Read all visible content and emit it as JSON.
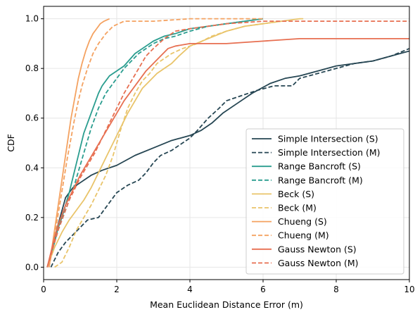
{
  "chart_data": {
    "type": "line",
    "xlabel": "Mean Euclidean Distance Error (m)",
    "ylabel": "CDF",
    "xlim": [
      0,
      10
    ],
    "ylim": [
      -0.05,
      1.05
    ],
    "xticks": [
      0,
      2,
      4,
      6,
      8,
      10
    ],
    "yticks": [
      0.0,
      0.2,
      0.4,
      0.6,
      0.8,
      1.0
    ],
    "grid": true,
    "legend_position": "lower-right",
    "series": [
      {
        "name": "Simple Intersection (S)",
        "color": "#264653",
        "dash": "solid",
        "x": [
          0.1,
          0.2,
          0.3,
          0.45,
          0.6,
          0.8,
          1.0,
          1.3,
          1.6,
          2.0,
          2.5,
          3.0,
          3.5,
          4.0,
          4.3,
          4.6,
          4.9,
          5.3,
          5.7,
          6.2,
          6.6,
          7.0,
          7.5,
          8.0,
          8.5,
          9.0,
          9.5,
          10.0
        ],
        "y": [
          0.0,
          0.05,
          0.12,
          0.2,
          0.28,
          0.32,
          0.34,
          0.37,
          0.39,
          0.41,
          0.45,
          0.48,
          0.51,
          0.53,
          0.55,
          0.58,
          0.62,
          0.66,
          0.7,
          0.74,
          0.76,
          0.77,
          0.79,
          0.81,
          0.82,
          0.83,
          0.85,
          0.87
        ]
      },
      {
        "name": "Simple Intersection (M)",
        "color": "#264653",
        "dash": "dashed",
        "x": [
          0.2,
          0.4,
          0.6,
          0.8,
          1.0,
          1.2,
          1.5,
          1.8,
          2.0,
          2.3,
          2.6,
          2.8,
          3.0,
          3.2,
          3.5,
          3.8,
          4.0,
          4.2,
          4.5,
          4.8,
          5.0,
          5.4,
          5.8,
          6.3,
          6.8,
          7.0,
          7.5,
          8.0,
          8.5,
          9.0,
          9.5,
          10.0
        ],
        "y": [
          0.0,
          0.06,
          0.1,
          0.13,
          0.16,
          0.19,
          0.2,
          0.26,
          0.3,
          0.33,
          0.35,
          0.38,
          0.42,
          0.45,
          0.47,
          0.5,
          0.52,
          0.55,
          0.6,
          0.64,
          0.67,
          0.69,
          0.71,
          0.73,
          0.73,
          0.76,
          0.78,
          0.8,
          0.82,
          0.83,
          0.85,
          0.88
        ]
      },
      {
        "name": "Range Bancroft (S)",
        "color": "#2a9d8f",
        "dash": "solid",
        "x": [
          0.1,
          0.2,
          0.3,
          0.4,
          0.5,
          0.6,
          0.7,
          0.8,
          0.9,
          1.0,
          1.1,
          1.2,
          1.3,
          1.4,
          1.5,
          1.6,
          1.7,
          1.8,
          2.0,
          2.2,
          2.5,
          2.8,
          3.0,
          3.3,
          3.6,
          4.0,
          4.5,
          5.0,
          5.5,
          6.0
        ],
        "y": [
          0.0,
          0.05,
          0.1,
          0.16,
          0.2,
          0.25,
          0.3,
          0.36,
          0.42,
          0.48,
          0.54,
          0.58,
          0.62,
          0.66,
          0.7,
          0.73,
          0.75,
          0.77,
          0.79,
          0.81,
          0.86,
          0.89,
          0.91,
          0.93,
          0.94,
          0.96,
          0.97,
          0.98,
          0.99,
          1.0
        ]
      },
      {
        "name": "Range Bancroft (M)",
        "color": "#2a9d8f",
        "dash": "dashed",
        "x": [
          0.1,
          0.2,
          0.3,
          0.4,
          0.5,
          0.6,
          0.7,
          0.8,
          0.9,
          1.0,
          1.1,
          1.2,
          1.3,
          1.4,
          1.5,
          1.6,
          1.7,
          1.8,
          2.0,
          2.2,
          2.4,
          2.6,
          2.8,
          3.0,
          3.3,
          3.6,
          4.0,
          4.5,
          5.0,
          5.5,
          6.0
        ],
        "y": [
          0.0,
          0.05,
          0.1,
          0.15,
          0.19,
          0.23,
          0.27,
          0.31,
          0.36,
          0.41,
          0.46,
          0.51,
          0.56,
          0.6,
          0.64,
          0.67,
          0.7,
          0.72,
          0.76,
          0.8,
          0.83,
          0.86,
          0.88,
          0.9,
          0.92,
          0.93,
          0.95,
          0.97,
          0.98,
          0.99,
          1.0
        ]
      },
      {
        "name": "Beck (S)",
        "color": "#e9c46a",
        "dash": "solid",
        "x": [
          0.1,
          0.3,
          0.5,
          0.7,
          0.9,
          1.1,
          1.3,
          1.5,
          1.7,
          1.9,
          2.1,
          2.3,
          2.5,
          2.7,
          2.9,
          3.1,
          3.3,
          3.5,
          3.7,
          4.0,
          4.5,
          5.0,
          5.5,
          6.0,
          6.5,
          7.0,
          7.1
        ],
        "y": [
          0.0,
          0.08,
          0.14,
          0.19,
          0.23,
          0.27,
          0.32,
          0.38,
          0.44,
          0.5,
          0.56,
          0.62,
          0.67,
          0.72,
          0.75,
          0.78,
          0.8,
          0.82,
          0.85,
          0.89,
          0.92,
          0.95,
          0.97,
          0.98,
          0.99,
          1.0,
          1.0
        ]
      },
      {
        "name": "Beck (M)",
        "color": "#e9c46a",
        "dash": "dashed",
        "x": [
          0.3,
          0.5,
          0.7,
          0.9,
          1.1,
          1.3,
          1.5,
          1.7,
          1.9,
          2.1,
          2.3,
          2.5,
          2.7,
          2.9,
          3.1,
          3.3,
          3.5,
          3.8,
          4.2,
          4.6,
          5.0,
          5.5,
          6.0,
          6.5
        ],
        "y": [
          0.0,
          0.02,
          0.08,
          0.15,
          0.2,
          0.25,
          0.31,
          0.37,
          0.45,
          0.55,
          0.64,
          0.7,
          0.75,
          0.78,
          0.82,
          0.84,
          0.86,
          0.88,
          0.9,
          0.93,
          0.95,
          0.97,
          0.98,
          0.99
        ]
      },
      {
        "name": "Chueng (S)",
        "color": "#f4a261",
        "dash": "solid",
        "x": [
          0.15,
          0.25,
          0.35,
          0.45,
          0.55,
          0.65,
          0.75,
          0.85,
          0.95,
          1.05,
          1.15,
          1.25,
          1.35,
          1.45,
          1.55,
          1.65,
          1.8
        ],
        "y": [
          0.0,
          0.1,
          0.2,
          0.3,
          0.4,
          0.5,
          0.6,
          0.68,
          0.76,
          0.82,
          0.87,
          0.91,
          0.94,
          0.96,
          0.98,
          0.99,
          1.0
        ]
      },
      {
        "name": "Chueng (M)",
        "color": "#f4a261",
        "dash": "dashed",
        "x": [
          0.15,
          0.25,
          0.35,
          0.45,
          0.55,
          0.65,
          0.75,
          0.85,
          0.95,
          1.05,
          1.2,
          1.35,
          1.5,
          1.7,
          1.9,
          2.2,
          2.6,
          3.0,
          4.0,
          5.0,
          6.0
        ],
        "y": [
          0.0,
          0.08,
          0.17,
          0.26,
          0.35,
          0.44,
          0.52,
          0.6,
          0.67,
          0.73,
          0.8,
          0.86,
          0.9,
          0.94,
          0.97,
          0.99,
          0.99,
          0.99,
          1.0,
          1.0,
          1.0
        ]
      },
      {
        "name": "Gauss Newton (S)",
        "color": "#e76f51",
        "dash": "solid",
        "x": [
          0.1,
          0.2,
          0.3,
          0.4,
          0.5,
          0.6,
          0.7,
          0.8,
          0.9,
          1.0,
          1.2,
          1.4,
          1.6,
          1.8,
          2.0,
          2.2,
          2.4,
          2.6,
          2.8,
          3.0,
          3.2,
          3.4,
          3.6,
          4.0,
          5.0,
          6.0,
          7.0,
          8.0,
          9.0,
          10.0
        ],
        "y": [
          0.0,
          0.06,
          0.12,
          0.17,
          0.21,
          0.25,
          0.28,
          0.31,
          0.34,
          0.37,
          0.42,
          0.47,
          0.52,
          0.57,
          0.62,
          0.67,
          0.71,
          0.75,
          0.79,
          0.82,
          0.85,
          0.88,
          0.89,
          0.9,
          0.9,
          0.91,
          0.92,
          0.92,
          0.92,
          0.92
        ]
      },
      {
        "name": "Gauss Newton (M)",
        "color": "#e76f51",
        "dash": "dashed",
        "x": [
          0.1,
          0.2,
          0.3,
          0.4,
          0.5,
          0.6,
          0.7,
          0.8,
          0.9,
          1.0,
          1.2,
          1.4,
          1.6,
          1.8,
          2.0,
          2.2,
          2.4,
          2.6,
          2.8,
          3.0,
          3.3,
          3.6,
          4.0,
          4.5,
          5.0,
          6.0,
          7.0,
          8.0,
          9.0,
          10.0
        ],
        "y": [
          0.0,
          0.05,
          0.1,
          0.15,
          0.19,
          0.23,
          0.27,
          0.3,
          0.33,
          0.36,
          0.41,
          0.46,
          0.52,
          0.58,
          0.64,
          0.7,
          0.75,
          0.8,
          0.85,
          0.88,
          0.92,
          0.95,
          0.96,
          0.97,
          0.98,
          0.99,
          0.99,
          0.99,
          0.99,
          0.99
        ]
      }
    ]
  }
}
